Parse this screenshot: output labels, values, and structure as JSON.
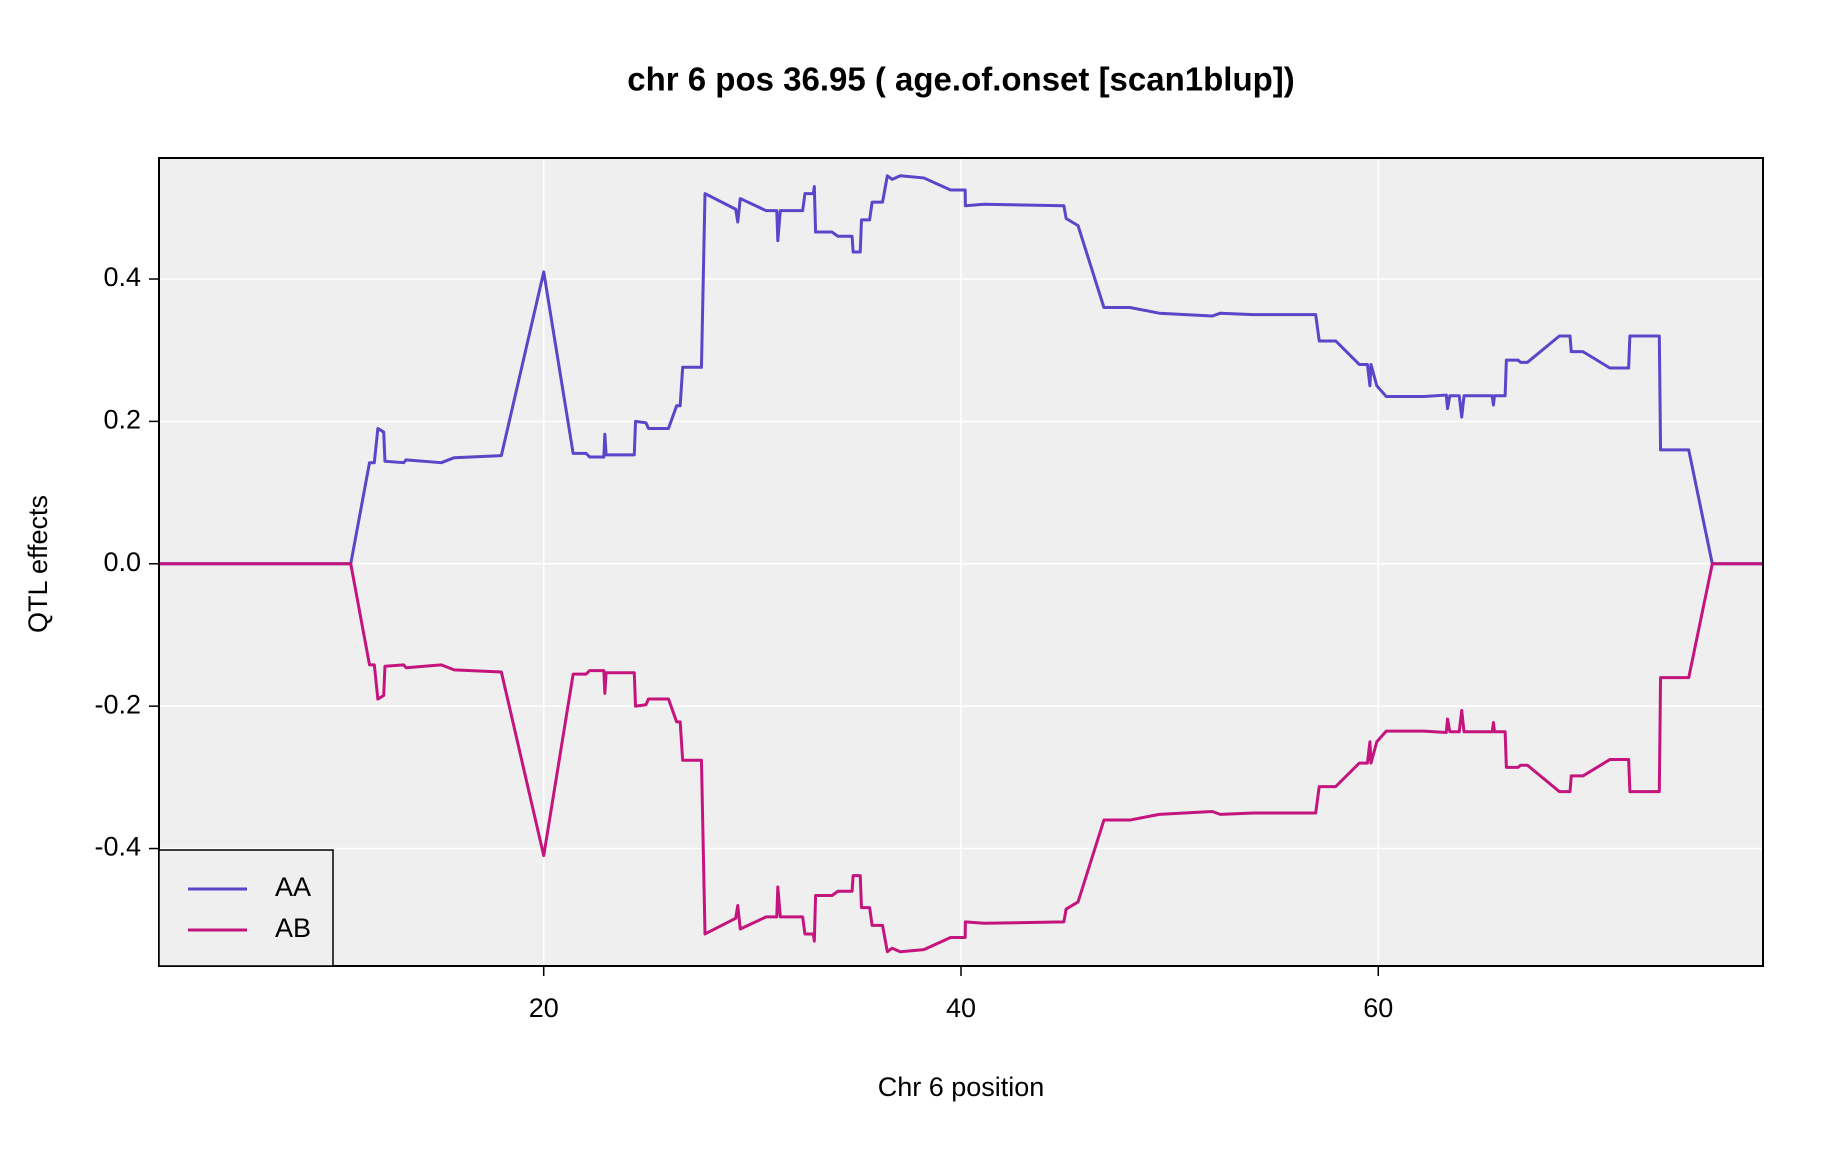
{
  "chart_data": {
    "type": "line",
    "title": "chr 6 pos 36.95 ( age.of.onset  [scan1blup])",
    "xlabel": "Chr 6 position",
    "ylabel": "QTL effects",
    "x": [
      1.6,
      10.75,
      11.65,
      11.88,
      12.05,
      12.33,
      12.39,
      13.29,
      13.4,
      15.09,
      15.71,
      17.97,
      20.0,
      21.41,
      22.03,
      22.2,
      22.88,
      22.93,
      22.99,
      24.34,
      24.4,
      24.9,
      25.02,
      25.64,
      25.98,
      26.37,
      26.54,
      26.66,
      27.56,
      27.73,
      29.2,
      29.3,
      29.42,
      30.66,
      31.17,
      31.22,
      31.34,
      32.41,
      32.52,
      32.92,
      32.97,
      33.03,
      33.82,
      34.1,
      34.78,
      34.83,
      35.17,
      35.23,
      35.62,
      35.74,
      36.24,
      36.47,
      36.7,
      37.09,
      38.22,
      39.5,
      40.2,
      40.21,
      41.1,
      44.93,
      45.04,
      45.61,
      46.85,
      48.1,
      49.5,
      52.04,
      52.43,
      54.01,
      57.0,
      57.17,
      57.96,
      59.09,
      59.48,
      59.6,
      59.65,
      59.93,
      60.38,
      62.19,
      63.26,
      63.32,
      63.43,
      63.88,
      64.0,
      64.11,
      65.46,
      65.52,
      65.57,
      66.08,
      66.14,
      66.7,
      66.82,
      67.15,
      68.68,
      69.19,
      69.25,
      69.81,
      71.1,
      72.0,
      72.06,
      73.47,
      73.53,
      74.88,
      76.01,
      78.44
    ],
    "series": [
      {
        "name": "AA",
        "color": "#5b45c9",
        "values": [
          0,
          0,
          0.142,
          0.142,
          0.19,
          0.185,
          0.144,
          0.142,
          0.146,
          0.142,
          0.149,
          0.152,
          0.41,
          0.155,
          0.155,
          0.15,
          0.15,
          0.182,
          0.153,
          0.153,
          0.2,
          0.198,
          0.19,
          0.19,
          0.19,
          0.222,
          0.222,
          0.276,
          0.276,
          0.52,
          0.498,
          0.48,
          0.513,
          0.496,
          0.496,
          0.454,
          0.496,
          0.496,
          0.52,
          0.52,
          0.53,
          0.466,
          0.466,
          0.46,
          0.46,
          0.438,
          0.438,
          0.483,
          0.483,
          0.508,
          0.508,
          0.545,
          0.54,
          0.545,
          0.542,
          0.525,
          0.525,
          0.503,
          0.505,
          0.503,
          0.485,
          0.475,
          0.36,
          0.36,
          0.352,
          0.348,
          0.352,
          0.35,
          0.35,
          0.313,
          0.313,
          0.28,
          0.28,
          0.25,
          0.28,
          0.25,
          0.235,
          0.235,
          0.237,
          0.218,
          0.236,
          0.236,
          0.206,
          0.236,
          0.236,
          0.223,
          0.236,
          0.236,
          0.286,
          0.286,
          0.283,
          0.283,
          0.32,
          0.32,
          0.298,
          0.298,
          0.275,
          0.275,
          0.32,
          0.32,
          0.16,
          0.16,
          0,
          0
        ]
      },
      {
        "name": "AB",
        "color": "#c4157f",
        "values": [
          0,
          0,
          -0.142,
          -0.142,
          -0.19,
          -0.185,
          -0.144,
          -0.142,
          -0.146,
          -0.142,
          -0.149,
          -0.152,
          -0.41,
          -0.155,
          -0.155,
          -0.15,
          -0.15,
          -0.182,
          -0.153,
          -0.153,
          -0.2,
          -0.198,
          -0.19,
          -0.19,
          -0.19,
          -0.222,
          -0.222,
          -0.276,
          -0.276,
          -0.52,
          -0.498,
          -0.48,
          -0.513,
          -0.496,
          -0.496,
          -0.454,
          -0.496,
          -0.496,
          -0.52,
          -0.52,
          -0.53,
          -0.466,
          -0.466,
          -0.46,
          -0.46,
          -0.438,
          -0.438,
          -0.483,
          -0.483,
          -0.508,
          -0.508,
          -0.545,
          -0.54,
          -0.545,
          -0.542,
          -0.525,
          -0.525,
          -0.503,
          -0.505,
          -0.503,
          -0.485,
          -0.475,
          -0.36,
          -0.36,
          -0.352,
          -0.348,
          -0.352,
          -0.35,
          -0.35,
          -0.313,
          -0.313,
          -0.28,
          -0.28,
          -0.25,
          -0.28,
          -0.25,
          -0.235,
          -0.235,
          -0.237,
          -0.218,
          -0.236,
          -0.236,
          -0.206,
          -0.236,
          -0.236,
          -0.223,
          -0.236,
          -0.236,
          -0.286,
          -0.286,
          -0.283,
          -0.283,
          -0.32,
          -0.32,
          -0.298,
          -0.298,
          -0.275,
          -0.275,
          -0.32,
          -0.32,
          -0.16,
          -0.16,
          0,
          0
        ]
      }
    ],
    "xlim": [
      1.56,
      78.44
    ],
    "xticks": [
      20,
      40,
      60
    ],
    "ylim": [
      -0.565,
      0.57
    ],
    "yticks": [
      -0.4,
      -0.2,
      {
        "value": 0,
        "label": "0.0"
      },
      0.2,
      0.4
    ],
    "grid": true,
    "legend": "bottom-left"
  }
}
